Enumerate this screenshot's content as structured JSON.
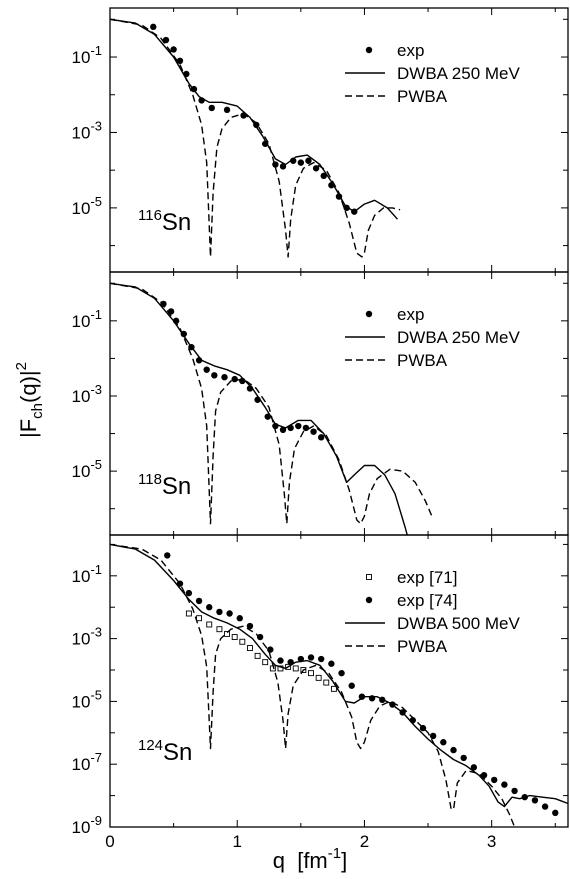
{
  "chart_data": {
    "type": "line",
    "xlabel": "q  [fm",
    "xlabel_exp": "-1",
    "xlabel_close": "]",
    "ylabel_main": "|F",
    "ylabel_sub": "ch",
    "ylabel_rest": "(q)|",
    "ylabel_exp": "2",
    "xlim": [
      0,
      3.6
    ],
    "xticks": [
      "0",
      "1",
      "2",
      "3"
    ],
    "ylog": true,
    "ylim_exp": [
      -9,
      0.3
    ],
    "yticks": [
      {
        "base": "10",
        "exp": "-1",
        "v": -1
      },
      {
        "base": "10",
        "exp": "-3",
        "v": -3
      },
      {
        "base": "10",
        "exp": "-5",
        "v": -5
      }
    ],
    "yticks_bottom": [
      {
        "base": "10",
        "exp": "-1",
        "v": -1
      },
      {
        "base": "10",
        "exp": "-3",
        "v": -3
      },
      {
        "base": "10",
        "exp": "-5",
        "v": -5
      },
      {
        "base": "10",
        "exp": "-7",
        "v": -7
      },
      {
        "base": "10",
        "exp": "-9",
        "v": -9
      }
    ],
    "panels": [
      {
        "nucleus_mass": "116",
        "nucleus_sym": "Sn",
        "legend": [
          "exp",
          "DWBA 250 MeV",
          "PWBA"
        ],
        "series": [
          {
            "name": "exp",
            "style": "dot",
            "x": [
              0.34,
              0.44,
              0.5,
              0.55,
              0.6,
              0.66,
              0.72,
              0.8,
              0.92,
              1.05,
              1.15,
              1.22,
              1.3,
              1.36,
              1.44,
              1.5,
              1.56,
              1.62,
              1.68,
              1.74,
              1.8,
              1.86,
              1.92
            ],
            "y": [
              -0.2,
              -0.55,
              -0.8,
              -1.1,
              -1.45,
              -1.85,
              -2.15,
              -2.35,
              -2.4,
              -2.55,
              -2.8,
              -3.3,
              -3.85,
              -3.9,
              -3.75,
              -3.8,
              -3.75,
              -3.95,
              -4.15,
              -4.4,
              -4.7,
              -5.0,
              -5.1
            ]
          },
          {
            "name": "DWBA 250 MeV",
            "style": "solid",
            "x": [
              0.0,
              0.2,
              0.35,
              0.5,
              0.62,
              0.7,
              0.78,
              0.88,
              1.0,
              1.1,
              1.2,
              1.3,
              1.38,
              1.46,
              1.55,
              1.65,
              1.75,
              1.85,
              1.92,
              2.0,
              2.08,
              2.18,
              2.26
            ],
            "y": [
              0.0,
              -0.1,
              -0.4,
              -1.0,
              -1.7,
              -2.05,
              -2.2,
              -2.2,
              -2.3,
              -2.6,
              -3.1,
              -3.7,
              -3.85,
              -3.65,
              -3.6,
              -3.85,
              -4.35,
              -4.95,
              -5.1,
              -4.9,
              -4.8,
              -5.0,
              -5.3
            ]
          },
          {
            "name": "PWBA",
            "style": "dashed",
            "x": [
              0.0,
              0.25,
              0.4,
              0.55,
              0.65,
              0.72,
              0.76,
              0.79,
              0.81,
              0.84,
              0.88,
              0.95,
              1.05,
              1.15,
              1.25,
              1.33,
              1.38,
              1.4,
              1.42,
              1.46,
              1.52,
              1.6,
              1.7,
              1.8,
              1.88,
              1.94,
              1.98,
              2.0,
              2.03,
              2.08,
              2.15,
              2.22,
              2.28
            ],
            "y": [
              0.0,
              -0.15,
              -0.5,
              -1.2,
              -2.0,
              -2.8,
              -3.8,
              -6.3,
              -4.6,
              -3.4,
              -2.9,
              -2.6,
              -2.5,
              -2.75,
              -3.3,
              -4.3,
              -5.6,
              -6.3,
              -5.3,
              -4.4,
              -3.95,
              -3.8,
              -4.0,
              -4.6,
              -5.4,
              -6.2,
              -6.3,
              -6.2,
              -5.6,
              -5.2,
              -5.0,
              -5.0,
              -5.05
            ]
          }
        ]
      },
      {
        "nucleus_mass": "118",
        "nucleus_sym": "Sn",
        "legend": [
          "exp",
          "DWBA 250 MeV",
          "PWBA"
        ],
        "series": [
          {
            "name": "exp",
            "style": "dot",
            "x": [
              0.42,
              0.48,
              0.52,
              0.58,
              0.64,
              0.7,
              0.76,
              0.82,
              0.9,
              0.98,
              1.04,
              1.1,
              1.16,
              1.24,
              1.3,
              1.36,
              1.42,
              1.48,
              1.54,
              1.6,
              1.66
            ],
            "y": [
              -0.55,
              -0.75,
              -1.0,
              -1.35,
              -1.7,
              -2.05,
              -2.3,
              -2.45,
              -2.5,
              -2.55,
              -2.6,
              -2.8,
              -3.1,
              -3.55,
              -3.8,
              -3.9,
              -3.85,
              -3.8,
              -3.85,
              -3.95,
              -4.1
            ]
          },
          {
            "name": "DWBA 250 MeV",
            "style": "solid",
            "x": [
              0.0,
              0.2,
              0.35,
              0.5,
              0.62,
              0.72,
              0.82,
              0.92,
              1.02,
              1.12,
              1.22,
              1.3,
              1.38,
              1.48,
              1.58,
              1.68,
              1.78,
              1.86,
              1.92,
              2.0,
              2.08,
              2.16,
              2.24,
              2.32,
              2.4,
              2.44
            ],
            "y": [
              0.0,
              -0.1,
              -0.4,
              -1.0,
              -1.6,
              -2.05,
              -2.2,
              -2.3,
              -2.45,
              -2.8,
              -3.3,
              -3.75,
              -3.85,
              -3.65,
              -3.65,
              -4.0,
              -4.6,
              -5.3,
              -5.1,
              -4.85,
              -4.85,
              -5.1,
              -5.6,
              -6.5,
              -7.5,
              -8.0
            ]
          },
          {
            "name": "PWBA",
            "style": "dashed",
            "x": [
              0.0,
              0.25,
              0.4,
              0.55,
              0.65,
              0.72,
              0.76,
              0.79,
              0.81,
              0.83,
              0.87,
              0.95,
              1.05,
              1.15,
              1.25,
              1.33,
              1.37,
              1.39,
              1.41,
              1.45,
              1.52,
              1.6,
              1.7,
              1.8,
              1.88,
              1.94,
              1.97,
              2.0,
              2.04,
              2.1,
              2.2,
              2.3,
              2.4,
              2.48,
              2.53
            ],
            "y": [
              0.0,
              -0.15,
              -0.5,
              -1.2,
              -2.0,
              -2.8,
              -3.8,
              -6.4,
              -4.6,
              -3.4,
              -2.9,
              -2.6,
              -2.55,
              -2.8,
              -3.3,
              -4.3,
              -5.6,
              -6.4,
              -5.3,
              -4.4,
              -3.95,
              -3.8,
              -4.05,
              -4.7,
              -5.5,
              -6.3,
              -6.4,
              -6.2,
              -5.6,
              -5.2,
              -4.95,
              -5.0,
              -5.3,
              -5.8,
              -6.2
            ]
          }
        ]
      },
      {
        "nucleus_mass": "124",
        "nucleus_sym": "Sn",
        "legend": [
          "exp [71]",
          "exp [74]",
          "DWBA 500 MeV",
          "PWBA"
        ],
        "series": [
          {
            "name": "exp [71]",
            "style": "square",
            "x": [
              0.62,
              0.7,
              0.78,
              0.86,
              0.92,
              0.98,
              1.04,
              1.1,
              1.16,
              1.22,
              1.28,
              1.34,
              1.4,
              1.46,
              1.52,
              1.58,
              1.64,
              1.7,
              1.76
            ],
            "y": [
              -2.2,
              -2.35,
              -2.55,
              -2.7,
              -2.85,
              -2.95,
              -3.1,
              -3.3,
              -3.55,
              -3.75,
              -3.95,
              -3.95,
              -3.9,
              -3.95,
              -4.0,
              -4.1,
              -4.25,
              -4.4,
              -4.6
            ]
          },
          {
            "name": "exp [74]",
            "style": "dot",
            "x": [
              0.45,
              0.55,
              0.62,
              0.7,
              0.78,
              0.86,
              0.94,
              1.02,
              1.1,
              1.18,
              1.26,
              1.34,
              1.42,
              1.5,
              1.58,
              1.66,
              1.74,
              1.82,
              1.9,
              1.98,
              2.06,
              2.14,
              2.22,
              2.3,
              2.38,
              2.46,
              2.54,
              2.62,
              2.7,
              2.78,
              2.86,
              2.94,
              3.02,
              3.1,
              3.18,
              3.26,
              3.34,
              3.42,
              3.5
            ],
            "y": [
              -0.35,
              -1.25,
              -1.55,
              -1.8,
              -2.0,
              -2.15,
              -2.2,
              -2.35,
              -2.6,
              -2.95,
              -3.35,
              -3.7,
              -3.75,
              -3.65,
              -3.6,
              -3.65,
              -3.8,
              -4.1,
              -4.5,
              -4.85,
              -4.9,
              -4.95,
              -5.1,
              -5.35,
              -5.6,
              -5.85,
              -6.1,
              -6.3,
              -6.55,
              -6.8,
              -7.1,
              -7.35,
              -7.5,
              -7.65,
              -7.85,
              -8.05,
              -8.15,
              -8.35,
              -8.55
            ]
          },
          {
            "name": "DWBA 500 MeV",
            "style": "solid",
            "x": [
              0.0,
              0.2,
              0.35,
              0.5,
              0.62,
              0.72,
              0.82,
              0.92,
              1.02,
              1.12,
              1.22,
              1.3,
              1.38,
              1.46,
              1.55,
              1.65,
              1.75,
              1.85,
              1.92,
              2.0,
              2.1,
              2.2,
              2.3,
              2.4,
              2.5,
              2.6,
              2.7,
              2.8,
              2.9,
              2.98,
              3.05,
              3.1,
              3.16,
              3.22,
              3.3,
              3.4,
              3.5,
              3.6
            ],
            "y": [
              0.0,
              -0.15,
              -0.5,
              -1.15,
              -1.75,
              -2.15,
              -2.35,
              -2.5,
              -2.7,
              -3.0,
              -3.5,
              -3.85,
              -3.95,
              -3.75,
              -3.7,
              -3.85,
              -4.35,
              -5.0,
              -5.05,
              -4.85,
              -4.85,
              -5.05,
              -5.35,
              -5.8,
              -6.2,
              -6.55,
              -6.85,
              -7.05,
              -7.35,
              -7.7,
              -8.2,
              -8.35,
              -8.05,
              -8.1,
              -8.0,
              -8.05,
              -8.1,
              -8.25
            ]
          },
          {
            "name": "PWBA",
            "style": "dashed",
            "x": [
              0.0,
              0.25,
              0.4,
              0.55,
              0.65,
              0.72,
              0.76,
              0.79,
              0.81,
              0.83,
              0.87,
              0.95,
              1.05,
              1.15,
              1.25,
              1.32,
              1.36,
              1.38,
              1.4,
              1.44,
              1.52,
              1.62,
              1.72,
              1.82,
              1.9,
              1.94,
              1.97,
              2.0,
              2.05,
              2.12,
              2.2,
              2.3,
              2.4,
              2.5,
              2.58,
              2.64,
              2.68,
              2.7,
              2.73,
              2.8,
              2.9,
              3.0,
              3.08,
              3.14,
              3.18
            ],
            "y": [
              0.0,
              -0.15,
              -0.5,
              -1.25,
              -2.05,
              -2.9,
              -3.9,
              -6.5,
              -4.7,
              -3.5,
              -3.0,
              -2.7,
              -2.6,
              -2.85,
              -3.4,
              -4.4,
              -5.6,
              -6.5,
              -5.4,
              -4.5,
              -4.0,
              -3.85,
              -4.1,
              -4.7,
              -5.5,
              -6.3,
              -6.5,
              -6.3,
              -5.6,
              -5.15,
              -5.0,
              -5.2,
              -5.6,
              -6.0,
              -6.6,
              -7.5,
              -8.4,
              -8.45,
              -7.6,
              -7.2,
              -7.3,
              -7.7,
              -8.1,
              -8.6,
              -9.0
            ]
          }
        ]
      }
    ]
  }
}
